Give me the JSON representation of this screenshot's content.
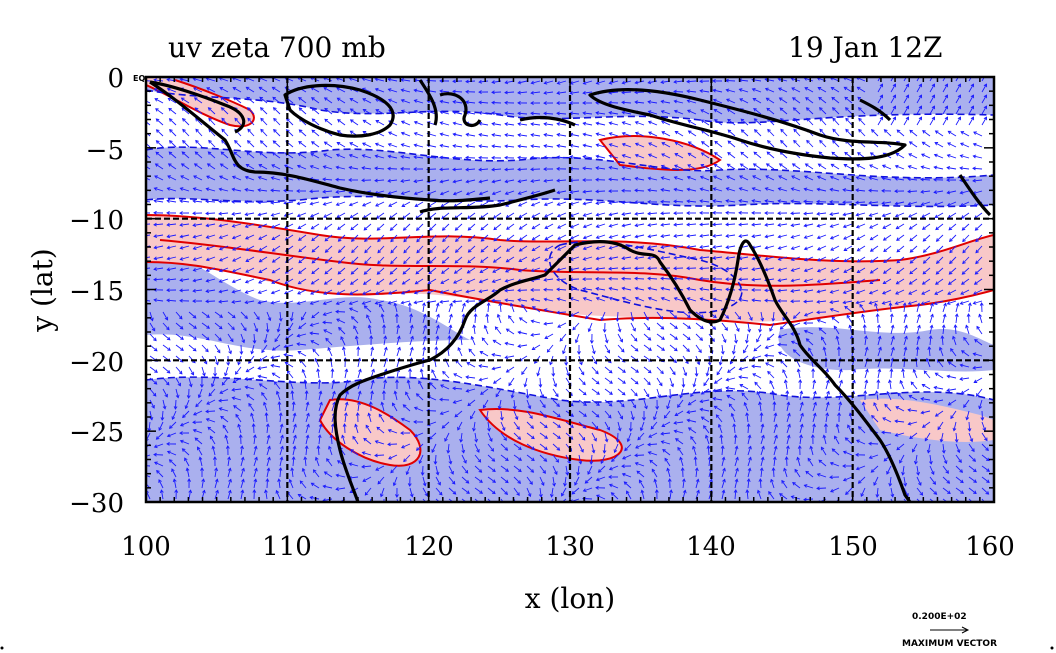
{
  "title_left": "uv zeta 700 mb",
  "title_right": "19 Jan 12Z",
  "corner_label": "EQ",
  "xlabel": "x (lon)",
  "ylabel": "y (lat)",
  "x_ticks": [
    "100",
    "110",
    "120",
    "130",
    "140",
    "150",
    "160"
  ],
  "y_ticks": [
    "0",
    "−5",
    "−10",
    "−15",
    "−20",
    "−25",
    "−30"
  ],
  "vector_scale_value": "0.200E+02",
  "vector_scale_label": "MAXIMUM VECTOR",
  "colors": {
    "positive_fill": "#f8c8c8",
    "positive_contour": "#e00000",
    "negative_fill": "#aab0ee",
    "negative_contour": "#1010dd",
    "vectors": "#1a1aff",
    "coastline": "#000000"
  },
  "chart_data": {
    "type": "heatmap",
    "xlim": [
      100,
      160
    ],
    "ylim": [
      -30,
      0
    ],
    "grid": true,
    "fields": [
      "uv",
      "zeta"
    ],
    "level": "700 mb"
  }
}
